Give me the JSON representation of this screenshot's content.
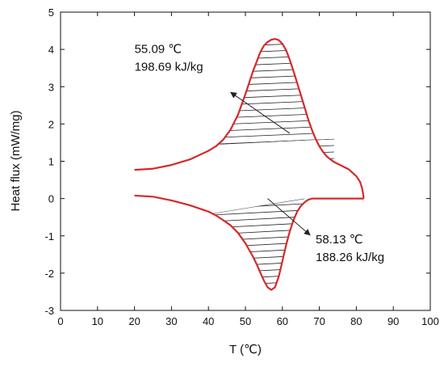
{
  "chart_data": {
    "type": "line",
    "title": "",
    "xlabel": "T (℃)",
    "ylabel": "Heat flux (mW/mg)",
    "xlim": [
      0,
      100
    ],
    "ylim": [
      -3,
      5
    ],
    "xticks": [
      0,
      10,
      20,
      30,
      40,
      50,
      60,
      70,
      80,
      90,
      100
    ],
    "yticks": [
      -3,
      -2,
      -1,
      0,
      1,
      2,
      3,
      4,
      5
    ],
    "grid": false,
    "legend": "none",
    "colors": {
      "curve": "#d42a2a",
      "axes": "#111111",
      "hatch": "#222222",
      "arrow": "#222222"
    },
    "series": [
      {
        "role": "upper",
        "x": [
          20,
          25,
          30,
          35,
          40,
          42,
          44,
          46,
          48,
          50,
          52,
          54,
          55,
          56,
          57,
          58,
          59,
          60,
          61,
          62,
          63,
          64,
          65,
          66,
          67,
          68,
          69,
          70,
          71,
          72,
          73,
          74,
          75,
          76,
          78,
          80,
          81,
          81.5,
          81.8,
          82
        ],
        "y": [
          0.77,
          0.8,
          0.9,
          1.05,
          1.28,
          1.4,
          1.58,
          1.85,
          2.25,
          2.8,
          3.4,
          3.92,
          4.1,
          4.2,
          4.26,
          4.28,
          4.25,
          4.15,
          3.98,
          3.72,
          3.42,
          3.1,
          2.78,
          2.45,
          2.12,
          1.84,
          1.6,
          1.4,
          1.25,
          1.13,
          1.05,
          0.98,
          0.93,
          0.88,
          0.78,
          0.6,
          0.45,
          0.3,
          0.15,
          0.0
        ]
      },
      {
        "role": "lower",
        "x": [
          20,
          25,
          30,
          35,
          40,
          42,
          44,
          46,
          48,
          50,
          52,
          53,
          54,
          55,
          56,
          57,
          58,
          59,
          60,
          61,
          62,
          63,
          64,
          65,
          66,
          67,
          68,
          70,
          72,
          75,
          78,
          80,
          81,
          81.5,
          81.8,
          82
        ],
        "y": [
          0.08,
          0.05,
          -0.05,
          -0.18,
          -0.35,
          -0.45,
          -0.58,
          -0.72,
          -0.92,
          -1.2,
          -1.55,
          -1.75,
          -1.98,
          -2.2,
          -2.38,
          -2.45,
          -2.38,
          -2.1,
          -1.68,
          -1.25,
          -0.88,
          -0.58,
          -0.35,
          -0.2,
          -0.1,
          -0.03,
          0.0,
          0.0,
          0.0,
          0.0,
          0.0,
          0.0,
          0.0,
          0.0,
          0.0,
          0.0
        ]
      }
    ],
    "hatch_regions": [
      {
        "name": "melting",
        "x_range": [
          43,
          74
        ],
        "baseline": [
          [
            43,
            1.45
          ],
          [
            74,
            1.6
          ]
        ]
      },
      {
        "name": "crystallization",
        "x_range": [
          41,
          66
        ],
        "baseline": [
          [
            41,
            -0.4
          ],
          [
            66,
            0.0
          ]
        ]
      }
    ],
    "annotations": [
      {
        "lines": [
          "55.09 ℃",
          "198.69 kJ/kg"
        ],
        "text_at": [
          20,
          3.9
        ],
        "arrow_from": [
          62,
          1.75
        ],
        "arrow_to": [
          46,
          2.85
        ]
      },
      {
        "lines": [
          "58.13 ℃",
          "188.26 kJ/kg"
        ],
        "text_at": [
          69,
          -1.2
        ],
        "arrow_from": [
          56,
          0.0
        ],
        "arrow_to": [
          67.5,
          -0.98
        ]
      }
    ]
  }
}
